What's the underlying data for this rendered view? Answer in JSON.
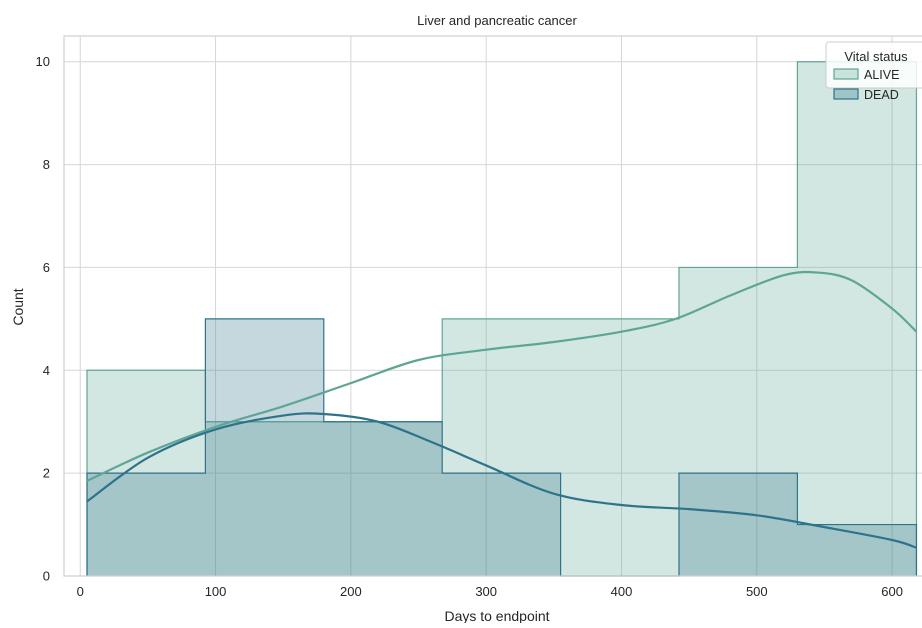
{
  "chart_data": {
    "type": "histogram",
    "title": "Liver and pancreatic cancer",
    "xlabel": "Days to endpoint",
    "ylabel": "Count",
    "xlim": [
      -12,
      628
    ],
    "ylim": [
      0,
      10.5
    ],
    "x_ticks": [
      0,
      100,
      200,
      300,
      400,
      500,
      600
    ],
    "y_ticks": [
      0,
      2,
      4,
      6,
      8,
      10
    ],
    "grid": true,
    "bin_edges": [
      5,
      92.5,
      180,
      267.5,
      355,
      442.5,
      530,
      618
    ],
    "legend": {
      "title": "Vital status",
      "placement": "top-right"
    },
    "series": [
      {
        "name": "ALIVE",
        "color": "#5fa596",
        "counts": [
          4,
          3,
          3,
          5,
          5,
          6,
          10
        ],
        "kde_x": [
          5,
          50,
          100,
          150,
          200,
          250,
          300,
          350,
          400,
          440,
          480,
          520,
          545,
          570,
          600,
          618
        ],
        "kde_y": [
          1.85,
          2.4,
          2.9,
          3.3,
          3.75,
          4.2,
          4.4,
          4.55,
          4.75,
          5.0,
          5.45,
          5.85,
          5.9,
          5.75,
          5.2,
          4.75
        ]
      },
      {
        "name": "DEAD",
        "color": "#2e738a",
        "counts": [
          2,
          5,
          3,
          2,
          0,
          2,
          1
        ],
        "kde_x": [
          5,
          50,
          100,
          150,
          180,
          220,
          260,
          300,
          350,
          400,
          450,
          500,
          550,
          600,
          618
        ],
        "kde_y": [
          1.45,
          2.3,
          2.85,
          3.12,
          3.15,
          3.0,
          2.6,
          2.15,
          1.6,
          1.38,
          1.3,
          1.18,
          0.95,
          0.7,
          0.55
        ]
      }
    ]
  }
}
